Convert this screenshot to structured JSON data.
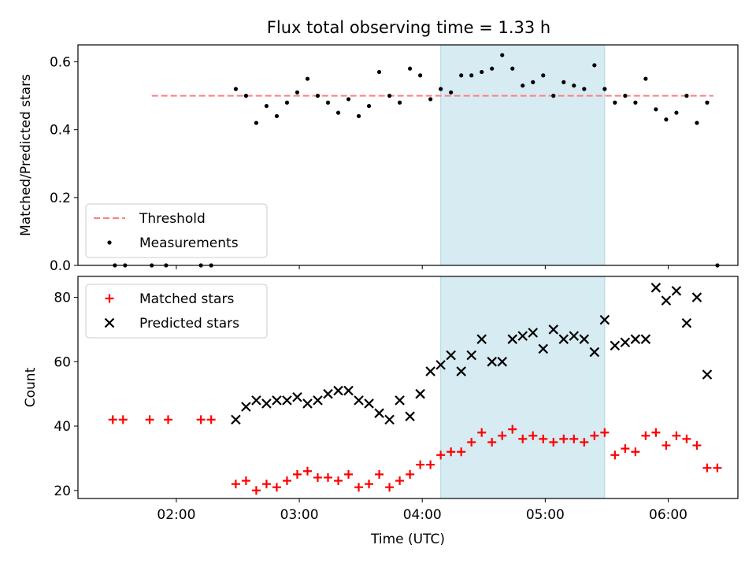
{
  "title": "Flux total observing time = 1.33 h",
  "chart_data": [
    {
      "type": "scatter",
      "panel": "top",
      "ylabel": "Matched/Predicted stars",
      "xlabel": "",
      "ylim": [
        0,
        0.65
      ],
      "yticks": [
        0.0,
        0.2,
        0.4,
        0.6
      ],
      "ytick_labels": [
        "0.0",
        "0.2",
        "0.4",
        "0.6"
      ],
      "legend_position": "lower-left",
      "threshold": {
        "name": "Threshold",
        "value": 0.5,
        "x_range": [
          "01:48",
          "06:22"
        ],
        "color": "#ff7f7f"
      },
      "series": [
        {
          "name": "Measurements",
          "color": "#000000",
          "marker": "dot",
          "x": [
            "01:30",
            "01:35",
            "01:48",
            "01:55",
            "02:12",
            "02:17",
            "02:29",
            "02:34",
            "02:39",
            "02:44",
            "02:49",
            "02:54",
            "02:59",
            "03:04",
            "03:09",
            "03:14",
            "03:19",
            "03:24",
            "03:29",
            "03:34",
            "03:39",
            "03:44",
            "03:49",
            "03:54",
            "03:59",
            "04:04",
            "04:09",
            "04:14",
            "04:19",
            "04:24",
            "04:29",
            "04:34",
            "04:39",
            "04:44",
            "04:49",
            "04:54",
            "04:59",
            "05:04",
            "05:09",
            "05:14",
            "05:19",
            "05:24",
            "05:29",
            "05:34",
            "05:39",
            "05:44",
            "05:49",
            "05:54",
            "05:59",
            "06:04",
            "06:09",
            "06:14",
            "06:19",
            "06:24"
          ],
          "y": [
            0,
            0,
            0,
            0,
            0,
            0,
            0.52,
            0.5,
            0.42,
            0.47,
            0.44,
            0.48,
            0.51,
            0.55,
            0.5,
            0.48,
            0.45,
            0.49,
            0.44,
            0.47,
            0.57,
            0.5,
            0.48,
            0.58,
            0.56,
            0.49,
            0.52,
            0.51,
            0.56,
            0.56,
            0.57,
            0.58,
            0.62,
            0.58,
            0.53,
            0.54,
            0.56,
            0.5,
            0.54,
            0.53,
            0.52,
            0.59,
            0.52,
            0.48,
            0.5,
            0.48,
            0.55,
            0.46,
            0.43,
            0.45,
            0.5,
            0.42,
            0.48,
            0
          ]
        }
      ]
    },
    {
      "type": "scatter",
      "panel": "bottom",
      "ylabel": "Count",
      "xlabel": "Time (UTC)",
      "ylim": [
        17.5,
        86.5
      ],
      "yticks": [
        20,
        40,
        60,
        80
      ],
      "ytick_labels": [
        "20",
        "40",
        "60",
        "80"
      ],
      "legend_position": "upper-left",
      "series": [
        {
          "name": "Matched stars",
          "color": "#ff0000",
          "marker": "plus",
          "x": [
            "01:29",
            "01:34",
            "01:47",
            "01:56",
            "02:12",
            "02:17",
            "02:29",
            "02:34",
            "02:39",
            "02:44",
            "02:49",
            "02:54",
            "02:59",
            "03:04",
            "03:09",
            "03:14",
            "03:19",
            "03:24",
            "03:29",
            "03:34",
            "03:39",
            "03:44",
            "03:49",
            "03:54",
            "03:59",
            "04:04",
            "04:09",
            "04:14",
            "04:19",
            "04:24",
            "04:29",
            "04:34",
            "04:39",
            "04:44",
            "04:49",
            "04:54",
            "04:59",
            "05:04",
            "05:09",
            "05:14",
            "05:19",
            "05:24",
            "05:29",
            "05:34",
            "05:39",
            "05:44",
            "05:49",
            "05:54",
            "05:59",
            "06:04",
            "06:09",
            "06:14",
            "06:19",
            "06:24"
          ],
          "y": [
            42,
            42,
            42,
            42,
            42,
            42,
            22,
            23,
            20,
            22,
            21,
            23,
            25,
            26,
            24,
            24,
            23,
            25,
            21,
            22,
            25,
            21,
            23,
            25,
            28,
            28,
            31,
            32,
            32,
            35,
            38,
            35,
            37,
            39,
            36,
            37,
            36,
            35,
            36,
            36,
            35,
            37,
            38,
            31,
            33,
            32,
            37,
            38,
            34,
            37,
            36,
            34,
            27,
            27
          ]
        },
        {
          "name": "Predicted stars",
          "color": "#000000",
          "marker": "x",
          "x": [
            "02:29",
            "02:34",
            "02:39",
            "02:44",
            "02:49",
            "02:54",
            "02:59",
            "03:04",
            "03:09",
            "03:14",
            "03:19",
            "03:24",
            "03:29",
            "03:34",
            "03:39",
            "03:44",
            "03:49",
            "03:54",
            "03:59",
            "04:04",
            "04:09",
            "04:14",
            "04:19",
            "04:24",
            "04:29",
            "04:34",
            "04:39",
            "04:44",
            "04:49",
            "04:54",
            "04:59",
            "05:04",
            "05:09",
            "05:14",
            "05:19",
            "05:24",
            "05:29",
            "05:34",
            "05:39",
            "05:44",
            "05:49",
            "05:54",
            "05:59",
            "06:04",
            "06:09",
            "06:14",
            "06:19"
          ],
          "y": [
            42,
            46,
            48,
            47,
            48,
            48,
            49,
            47,
            48,
            50,
            51,
            51,
            48,
            47,
            44,
            42,
            48,
            43,
            50,
            57,
            59,
            62,
            57,
            62,
            67,
            60,
            60,
            67,
            68,
            69,
            64,
            70,
            67,
            68,
            67,
            63,
            73,
            65,
            66,
            67,
            67,
            83,
            79,
            82,
            72,
            80,
            56
          ]
        }
      ]
    }
  ],
  "shared_x_axis": {
    "range": [
      "01:12",
      "06:34"
    ],
    "ticks": [
      "02:00",
      "03:00",
      "04:00",
      "05:00",
      "06:00"
    ],
    "label": "Time (UTC)"
  },
  "highlight_span": {
    "x_range": [
      "04:09",
      "05:29"
    ],
    "color": "#add8e6"
  }
}
